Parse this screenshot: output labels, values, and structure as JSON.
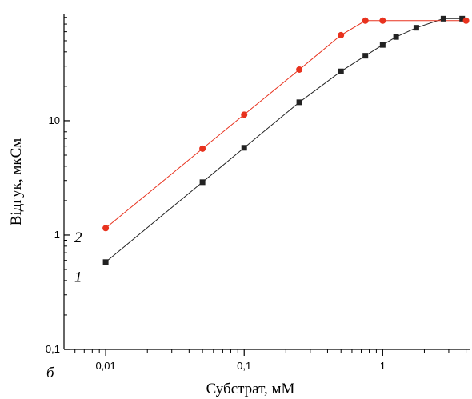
{
  "chart_data": {
    "type": "scatter",
    "panel_label": "б",
    "xlabel": "Субстрат, мМ",
    "ylabel": "Відгук, мкСм",
    "x_scale": "log",
    "y_scale": "log",
    "xlim": [
      0.005,
      4.3
    ],
    "ylim": [
      0.1,
      85
    ],
    "x_ticks": [
      {
        "value": 0.01,
        "label": "0,01"
      },
      {
        "value": 0.1,
        "label": "0,1"
      },
      {
        "value": 1,
        "label": "1"
      }
    ],
    "y_ticks": [
      {
        "value": 0.1,
        "label": "0,1"
      },
      {
        "value": 1,
        "label": "1"
      },
      {
        "value": 10,
        "label": "10"
      }
    ],
    "grid": false,
    "series": [
      {
        "name": "1",
        "color": "#222222",
        "marker": "square",
        "label_at": [
          0.006,
          0.43
        ],
        "points": [
          {
            "x": 0.01,
            "y": 0.58
          },
          {
            "x": 0.05,
            "y": 2.9
          },
          {
            "x": 0.1,
            "y": 5.8
          },
          {
            "x": 0.25,
            "y": 14.5
          },
          {
            "x": 0.5,
            "y": 27
          },
          {
            "x": 0.75,
            "y": 37
          },
          {
            "x": 1.0,
            "y": 46
          },
          {
            "x": 1.25,
            "y": 54
          },
          {
            "x": 1.75,
            "y": 65
          },
          {
            "x": 2.75,
            "y": 78
          },
          {
            "x": 3.75,
            "y": 78
          }
        ]
      },
      {
        "name": "2",
        "color": "#e8321e",
        "marker": "circle",
        "label_at": [
          0.006,
          0.95
        ],
        "points": [
          {
            "x": 0.01,
            "y": 1.15
          },
          {
            "x": 0.05,
            "y": 5.7
          },
          {
            "x": 0.1,
            "y": 11.3
          },
          {
            "x": 0.25,
            "y": 28
          },
          {
            "x": 0.5,
            "y": 56
          },
          {
            "x": 0.75,
            "y": 75
          },
          {
            "x": 1.0,
            "y": 75
          },
          {
            "x": 4.0,
            "y": 75
          }
        ]
      }
    ]
  }
}
